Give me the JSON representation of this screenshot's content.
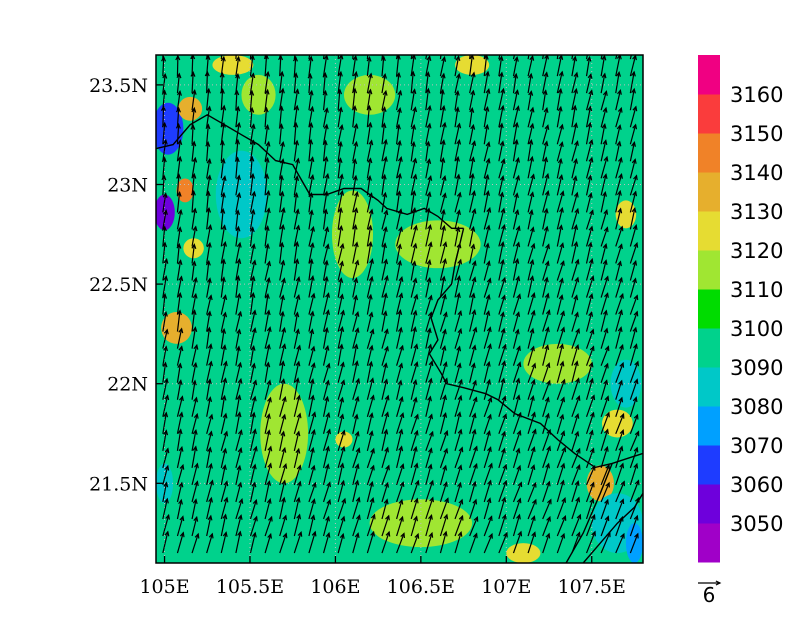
{
  "chart_data": {
    "type": "heatmap",
    "title": "",
    "xlabel": "",
    "ylabel": "",
    "xlim": [
      104.95,
      107.8
    ],
    "ylim": [
      21.1,
      23.65
    ],
    "x_ticks": [
      {
        "value": 105.0,
        "label": "105E"
      },
      {
        "value": 105.5,
        "label": "105.5E"
      },
      {
        "value": 106.0,
        "label": "106E"
      },
      {
        "value": 106.5,
        "label": "106.5E"
      },
      {
        "value": 107.0,
        "label": "107E"
      },
      {
        "value": 107.5,
        "label": "107.5E"
      }
    ],
    "y_ticks": [
      {
        "value": 21.5,
        "label": "21.5N"
      },
      {
        "value": 22.0,
        "label": "22N"
      },
      {
        "value": 22.5,
        "label": "22.5N"
      },
      {
        "value": 23.0,
        "label": "23N"
      },
      {
        "value": 23.5,
        "label": "23.5N"
      }
    ],
    "grid": true,
    "background_level": 3090,
    "colorbar": {
      "labels": [
        "3050",
        "3060",
        "3070",
        "3080",
        "3090",
        "3100",
        "3110",
        "3120",
        "3130",
        "3140",
        "3150",
        "3160"
      ],
      "colors": [
        "#a000c8",
        "#6e00dc",
        "#1e3cff",
        "#00a0ff",
        "#00c8c8",
        "#00d28c",
        "#00dc00",
        "#a0e632",
        "#e6dc32",
        "#e6af2d",
        "#f08228",
        "#fa3c3c",
        "#f00082"
      ]
    },
    "features": [
      {
        "level": 3060,
        "lon": 105.02,
        "lat": 23.28,
        "rx": 0.09,
        "ry": 0.13
      },
      {
        "level": 3050,
        "lon": 105.0,
        "lat": 22.86,
        "rx": 0.06,
        "ry": 0.09
      },
      {
        "level": 3130,
        "lon": 105.15,
        "lat": 23.38,
        "rx": 0.07,
        "ry": 0.06
      },
      {
        "level": 3140,
        "lon": 105.12,
        "lat": 22.97,
        "rx": 0.05,
        "ry": 0.06
      },
      {
        "level": 3130,
        "lon": 105.07,
        "lat": 22.28,
        "rx": 0.09,
        "ry": 0.08
      },
      {
        "level": 3120,
        "lon": 105.17,
        "lat": 22.68,
        "rx": 0.06,
        "ry": 0.05
      },
      {
        "level": 3120,
        "lon": 105.4,
        "lat": 23.6,
        "rx": 0.12,
        "ry": 0.05
      },
      {
        "level": 3120,
        "lon": 106.8,
        "lat": 23.6,
        "rx": 0.1,
        "ry": 0.05
      },
      {
        "level": 3120,
        "lon": 107.7,
        "lat": 22.85,
        "rx": 0.06,
        "ry": 0.07
      },
      {
        "level": 3130,
        "lon": 107.55,
        "lat": 21.5,
        "rx": 0.08,
        "ry": 0.09
      },
      {
        "level": 3120,
        "lon": 107.65,
        "lat": 21.8,
        "rx": 0.09,
        "ry": 0.07
      },
      {
        "level": 3120,
        "lon": 106.05,
        "lat": 21.72,
        "rx": 0.05,
        "ry": 0.04
      },
      {
        "level": 3120,
        "lon": 107.1,
        "lat": 21.15,
        "rx": 0.1,
        "ry": 0.05
      },
      {
        "level": 3110,
        "lon": 106.1,
        "lat": 22.75,
        "rx": 0.12,
        "ry": 0.22
      },
      {
        "level": 3110,
        "lon": 105.7,
        "lat": 21.75,
        "rx": 0.14,
        "ry": 0.25
      },
      {
        "level": 3110,
        "lon": 106.5,
        "lat": 21.3,
        "rx": 0.3,
        "ry": 0.12
      },
      {
        "level": 3110,
        "lon": 107.3,
        "lat": 22.1,
        "rx": 0.2,
        "ry": 0.1
      },
      {
        "level": 3110,
        "lon": 106.6,
        "lat": 22.7,
        "rx": 0.25,
        "ry": 0.12
      },
      {
        "level": 3110,
        "lon": 106.2,
        "lat": 23.45,
        "rx": 0.15,
        "ry": 0.1
      },
      {
        "level": 3110,
        "lon": 105.55,
        "lat": 23.45,
        "rx": 0.1,
        "ry": 0.1
      },
      {
        "level": 3080,
        "lon": 105.45,
        "lat": 22.95,
        "rx": 0.15,
        "ry": 0.22
      },
      {
        "level": 3080,
        "lon": 107.65,
        "lat": 21.3,
        "rx": 0.15,
        "ry": 0.15
      },
      {
        "level": 3070,
        "lon": 107.75,
        "lat": 21.2,
        "rx": 0.05,
        "ry": 0.1
      },
      {
        "level": 3080,
        "lon": 107.7,
        "lat": 22.0,
        "rx": 0.09,
        "ry": 0.12
      },
      {
        "level": 3080,
        "lon": 105.0,
        "lat": 21.5,
        "rx": 0.05,
        "ry": 0.1
      }
    ],
    "wind_vectors": {
      "reference_label": "6",
      "reference_magnitude": 6,
      "lon_start": 104.99,
      "lon_step": 0.0855,
      "cols": 34,
      "lat_start": 21.15,
      "lat_step": 0.0855,
      "rows": 30,
      "v_mean": 5.0,
      "u_start": 0.3,
      "u_end": 2.0
    },
    "borders": [
      [
        [
          104.95,
          23.18
        ],
        [
          105.05,
          23.2
        ],
        [
          105.15,
          23.3
        ],
        [
          105.25,
          23.35
        ],
        [
          105.35,
          23.3
        ],
        [
          105.45,
          23.25
        ],
        [
          105.55,
          23.2
        ],
        [
          105.65,
          23.12
        ],
        [
          105.75,
          23.1
        ],
        [
          105.85,
          22.95
        ],
        [
          105.95,
          22.95
        ],
        [
          106.05,
          22.98
        ],
        [
          106.15,
          22.98
        ],
        [
          106.25,
          22.92
        ],
        [
          106.3,
          22.88
        ],
        [
          106.42,
          22.85
        ],
        [
          106.52,
          22.88
        ],
        [
          106.6,
          22.84
        ],
        [
          106.68,
          22.78
        ],
        [
          106.75,
          22.78
        ]
      ],
      [
        [
          106.75,
          22.78
        ],
        [
          106.7,
          22.6
        ],
        [
          106.68,
          22.5
        ],
        [
          106.6,
          22.42
        ],
        [
          106.56,
          22.33
        ],
        [
          106.6,
          22.22
        ],
        [
          106.55,
          22.15
        ],
        [
          106.62,
          22.05
        ],
        [
          106.65,
          22.0
        ],
        [
          106.75,
          21.98
        ],
        [
          106.88,
          21.95
        ],
        [
          106.95,
          21.92
        ],
        [
          107.05,
          21.85
        ],
        [
          107.2,
          21.8
        ],
        [
          107.3,
          21.72
        ],
        [
          107.4,
          21.65
        ],
        [
          107.52,
          21.58
        ],
        [
          107.62,
          21.6
        ],
        [
          107.8,
          21.65
        ]
      ],
      [
        [
          107.35,
          21.1
        ],
        [
          107.45,
          21.25
        ],
        [
          107.55,
          21.45
        ],
        [
          107.62,
          21.6
        ]
      ],
      [
        [
          107.45,
          21.1
        ],
        [
          107.55,
          21.2
        ],
        [
          107.65,
          21.3
        ],
        [
          107.75,
          21.38
        ],
        [
          107.8,
          21.45
        ]
      ]
    ]
  }
}
